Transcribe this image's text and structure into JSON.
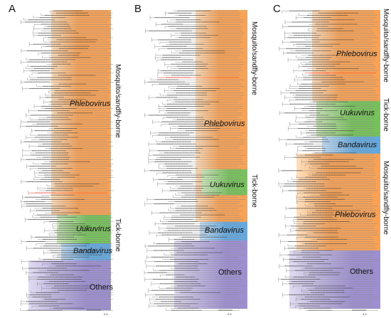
{
  "colors": {
    "phlebo": "#f8a256",
    "phlebo_light": "#fde0c0",
    "uukuvirus": "#76c25a",
    "uukuvirus_light": "#cfe9be",
    "bandavirus": "#63a9e0",
    "bandavirus_light": "#c6def4",
    "others": "#9e8fd2",
    "others_light": "#e0dbf0",
    "highlight": "#e8301e",
    "branch": "#8c8c8c"
  },
  "panels": [
    {
      "label": "A",
      "clades": [
        {
          "name": "Phlebovirus",
          "group": "phlebo"
        },
        {
          "name": "Uukuvirus",
          "group": "uukuvirus"
        },
        {
          "name": "Bandavirus",
          "group": "bandavirus"
        },
        {
          "name": "Others",
          "group": "others"
        }
      ],
      "hosts": [
        {
          "text": "Mosquito/sandfly-borne"
        },
        {
          "text": "Tick-borne"
        }
      ],
      "scale": "0.5"
    },
    {
      "label": "B",
      "clades": [
        {
          "name": "Phlebovirus",
          "group": "phlebo"
        },
        {
          "name": "Uukuvirus",
          "group": "uukuvirus"
        },
        {
          "name": "Bandavirus",
          "group": "bandavirus"
        },
        {
          "name": "Others",
          "group": "others"
        }
      ],
      "hosts": [
        {
          "text": "Mosquito/sandfly-borne"
        },
        {
          "text": "Tick-borne"
        }
      ],
      "scale": "0.5"
    },
    {
      "label": "C",
      "clades": [
        {
          "name": "Phlebovirus",
          "group": "phlebo"
        },
        {
          "name": "Uukuvirus",
          "group": "uukuvirus"
        },
        {
          "name": "Bandavirus",
          "group": "bandavirus"
        },
        {
          "name": "Phlebovirus",
          "group": "phlebo"
        },
        {
          "name": "Others",
          "group": "others"
        }
      ],
      "hosts": [
        {
          "text": "Mosquito/sandfly-borne"
        },
        {
          "text": "Tick-borne"
        },
        {
          "text": "Mosquito/sandfly-borne"
        }
      ],
      "scale": "0.5"
    }
  ]
}
